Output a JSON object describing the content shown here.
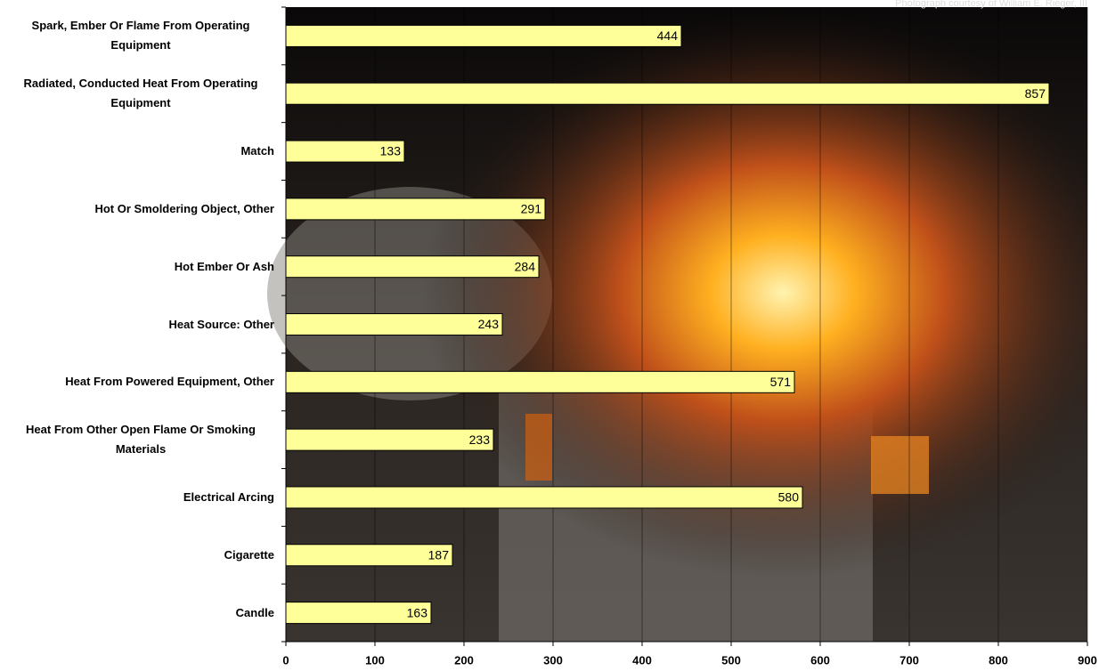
{
  "chart_data": {
    "type": "bar",
    "orientation": "horizontal",
    "credit": "Photograph courtesy of William E. Rieger, III",
    "categories": [
      "Spark, Ember Or Flame From Operating Equipment",
      "Radiated, Conducted Heat From Operating Equipment",
      "Match",
      "Hot Or Smoldering Object, Other",
      "Hot Ember Or Ash",
      "Heat Source: Other",
      "Heat From Powered Equipment, Other",
      "Heat From Other Open Flame Or Smoking Materials",
      "Electrical Arcing",
      "Cigarette",
      "Candle"
    ],
    "values": [
      444,
      857,
      133,
      291,
      284,
      243,
      571,
      233,
      580,
      187,
      163
    ],
    "color": "#ffff99",
    "xlim": [
      0,
      900
    ],
    "xticks": [
      0,
      100,
      200,
      300,
      400,
      500,
      600,
      700,
      800,
      900
    ],
    "grid": true
  }
}
